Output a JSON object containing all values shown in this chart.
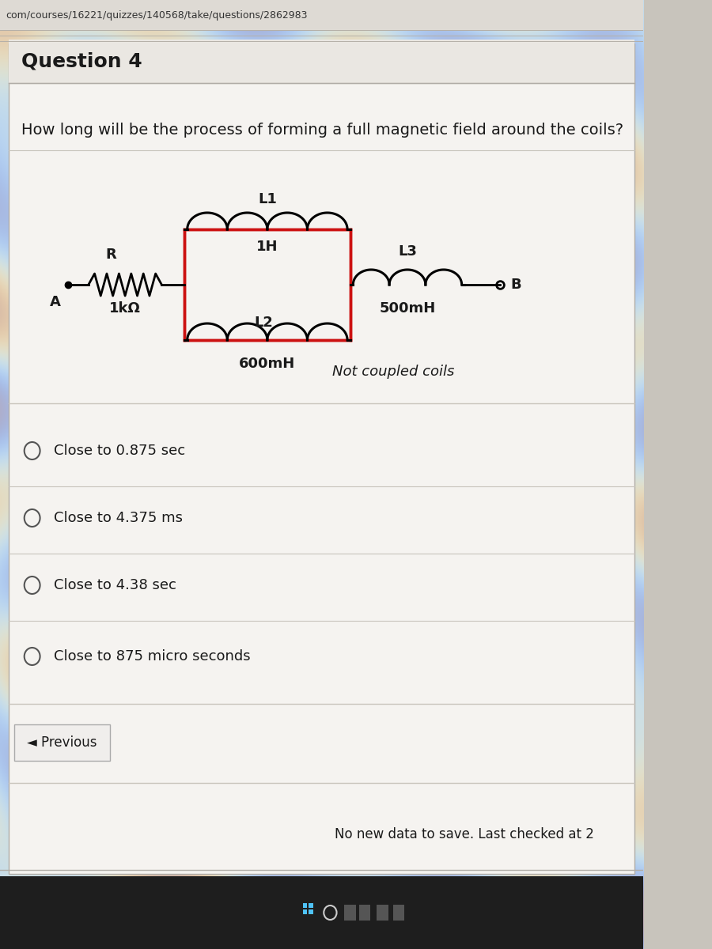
{
  "url_bar_text": "com/courses/16221/quizzes/140568/take/questions/2862983",
  "question_num": "Question 4",
  "question_text": "How long will be the process of forming a full magnetic field around the coils?",
  "circuit": {
    "L1_label": "L1",
    "L1_value": "1H",
    "L2_label": "L2",
    "L2_value": "600mH",
    "L3_label": "L3",
    "L3_value": "500mH",
    "R_label": "R",
    "R_value": "1kΩ",
    "A_label": "A",
    "B_label": "B",
    "note": "Not coupled coils"
  },
  "options": [
    "Close to 0.875 sec",
    "Close to 4.375 ms",
    "Close to 4.38 sec",
    "Close to 875 micro seconds"
  ],
  "previous_btn": "◄ Previous",
  "footer_text": "No new data to save. Last checked at 2",
  "bg_color": "#c8c4bc",
  "url_bar_bg": "#dedad4",
  "white_panel": "#f5f3f0",
  "red_color": "#cc1111",
  "text_color": "#1a1a1a",
  "divider_color": "#c8c4bc",
  "taskbar_color": "#1e1e1e"
}
